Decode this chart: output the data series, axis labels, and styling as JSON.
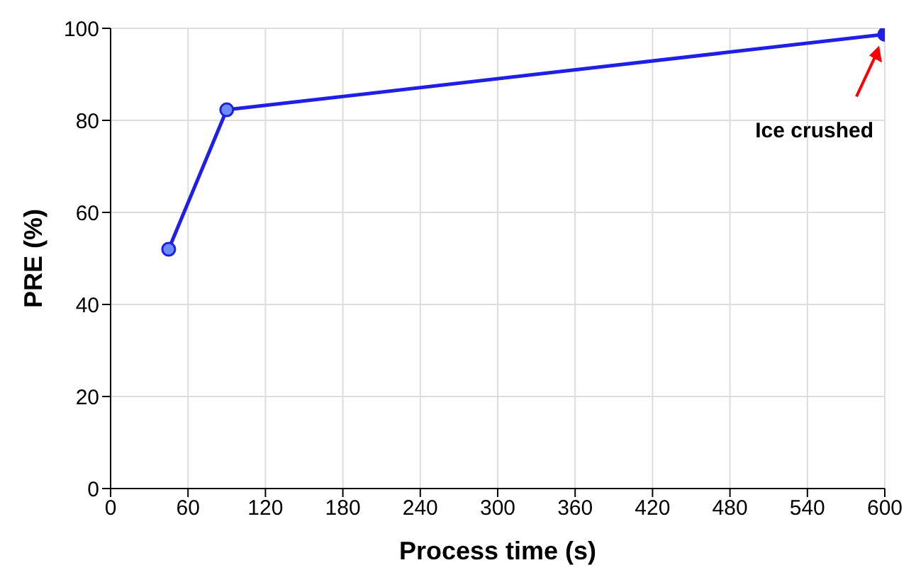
{
  "chart_data": {
    "type": "line",
    "xlabel": "Process time (s)",
    "ylabel": "PRE (%)",
    "x": [
      45,
      90,
      600
    ],
    "series": [
      {
        "color": "#1f1fe6",
        "colors": [
          "#6b8cff",
          "#6b8cff",
          "#1f1fe6"
        ],
        "values": [
          52,
          82.3,
          98.7
        ]
      }
    ],
    "xlim": [
      0,
      600
    ],
    "xticks": [
      0,
      60,
      120,
      180,
      240,
      300,
      360,
      420,
      480,
      540,
      600
    ],
    "ylim": [
      0,
      100
    ],
    "yticks": [
      0,
      20,
      40,
      60,
      80,
      100
    ],
    "grid": true,
    "marker": "circle",
    "line_style": "solid",
    "annotations": [
      "Ice crushed"
    ]
  }
}
